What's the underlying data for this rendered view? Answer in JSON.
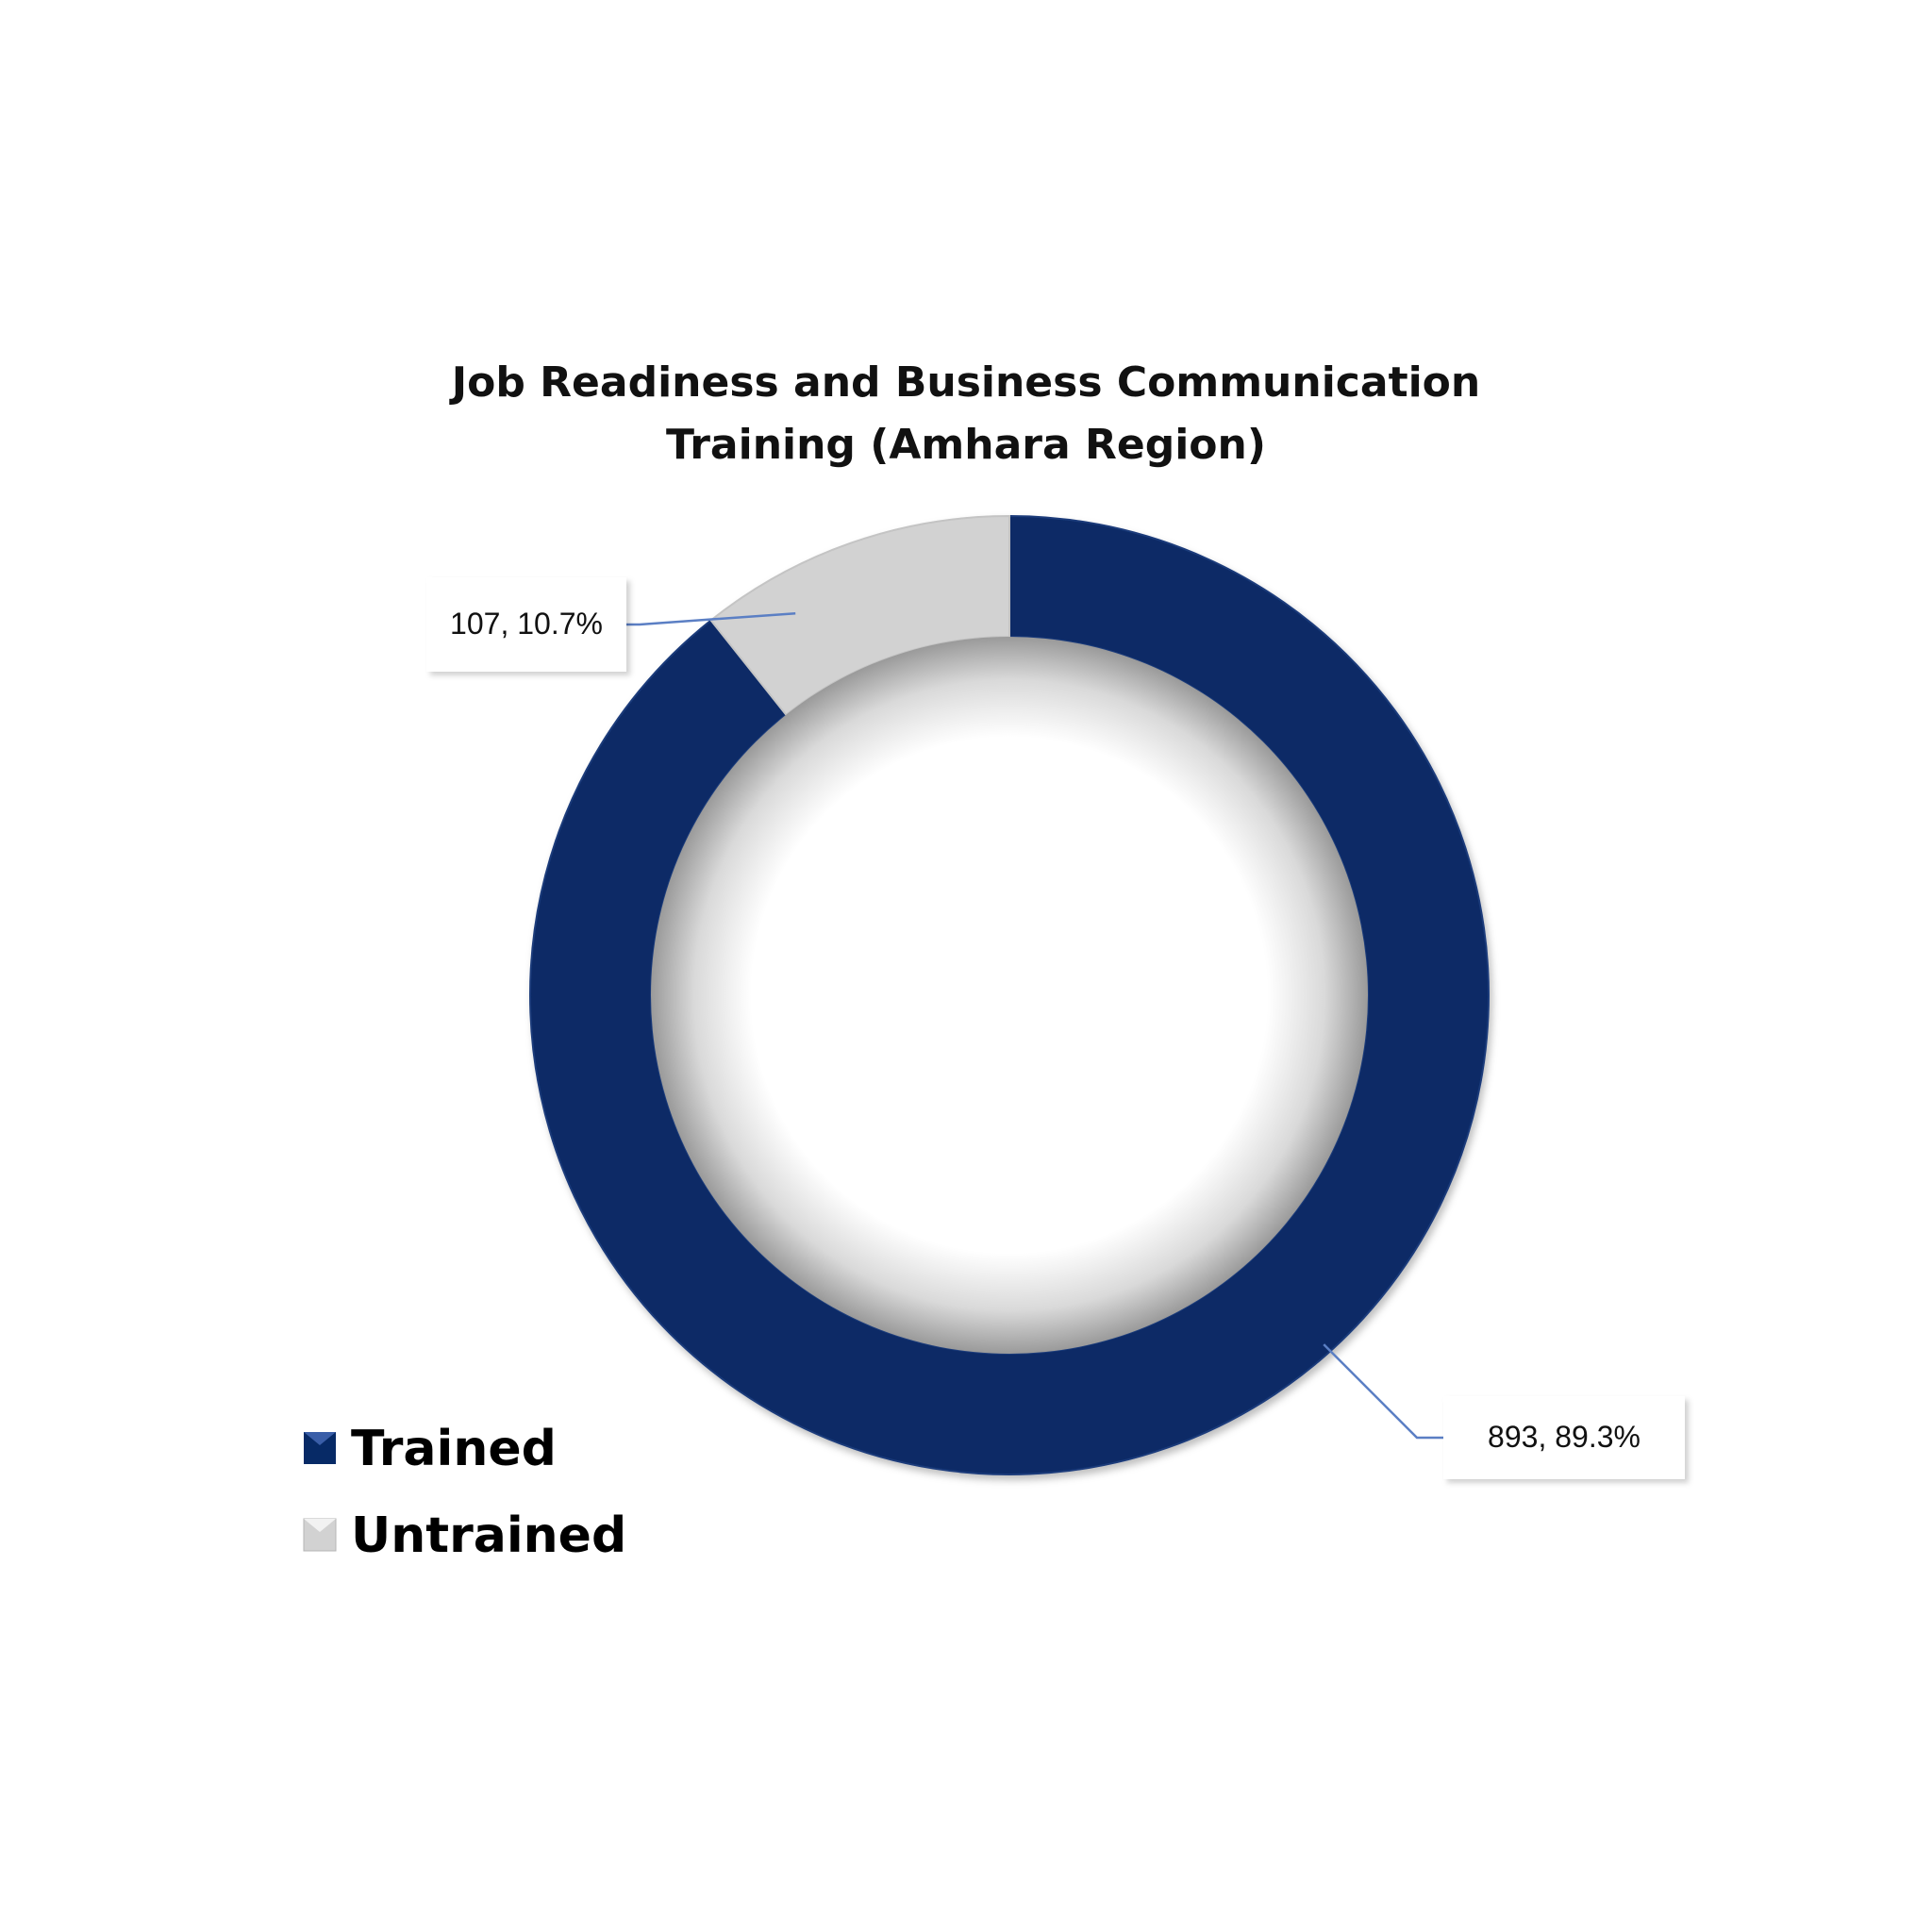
{
  "chart_data": {
    "type": "pie",
    "variant": "donut",
    "title": "Job Readiness and Business Communication Training (Amhara Region)",
    "title_lines": [
      "Job Readiness and Business Communication",
      "Training (Amhara Region)"
    ],
    "slices": [
      {
        "name": "Trained",
        "value": 893,
        "percent": 89.3,
        "label": "893, 89.3%",
        "color": "#072a66"
      },
      {
        "name": "Untrained",
        "value": 107,
        "percent": 10.7,
        "label": "107, 10.7%",
        "color": "#d2d2d2"
      }
    ],
    "legend_position": "bottom-left",
    "leader_line_color": "#5b7fc4"
  }
}
